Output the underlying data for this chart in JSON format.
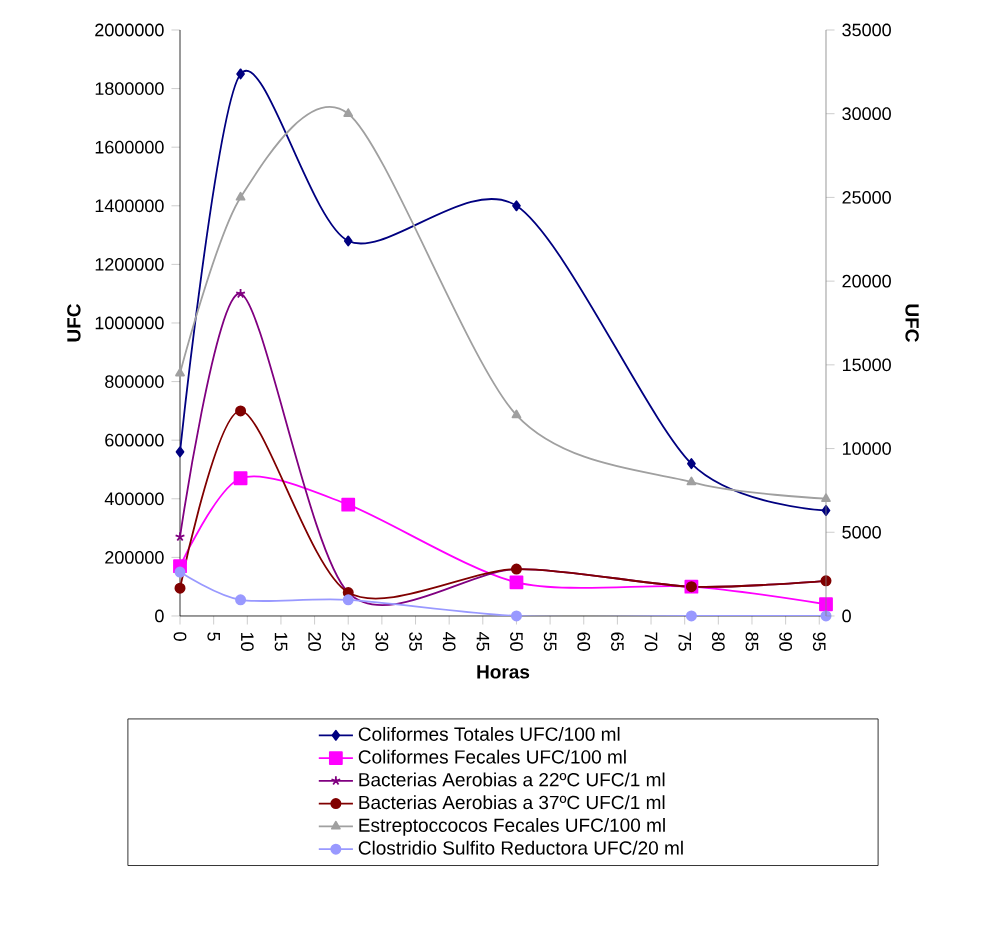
{
  "chart_data": {
    "type": "line",
    "xlabel": "Horas",
    "ylabel": "UFC",
    "y2label": "UFC",
    "xlim": [
      0,
      96
    ],
    "xticks": [
      0,
      5,
      10,
      15,
      20,
      25,
      30,
      35,
      40,
      45,
      50,
      55,
      60,
      65,
      70,
      75,
      80,
      85,
      90,
      95
    ],
    "ylim": [
      0,
      2000000
    ],
    "yticks": [
      0,
      200000,
      400000,
      600000,
      800000,
      1000000,
      1200000,
      1400000,
      1600000,
      1800000,
      2000000
    ],
    "y2lim": [
      0,
      35000
    ],
    "y2ticks": [
      0,
      5000,
      10000,
      15000,
      20000,
      25000,
      30000,
      35000
    ],
    "x": [
      0,
      9,
      25,
      50,
      76,
      96
    ],
    "legend": "bottom",
    "grid": false,
    "series": [
      {
        "name": "Coliformes Totales  UFC/100 ml",
        "color": "#000080",
        "marker": "diamond",
        "values": [
          560000,
          1850000,
          1280000,
          1400000,
          520000,
          360000
        ]
      },
      {
        "name": "Coliformes Fecales UFC/100 ml",
        "color": "#ff00ff",
        "marker": "square",
        "values": [
          170000,
          470000,
          380000,
          115000,
          100000,
          40000
        ]
      },
      {
        "name": "Bacterias Aerobias a 22ºC UFC/1 ml",
        "color": "#800080",
        "marker": "cross",
        "values": [
          270000,
          1100000,
          80000,
          160000,
          100000,
          120000
        ]
      },
      {
        "name": "Bacterias Aerobias a 37ºC UFC/1 ml",
        "color": "#800000",
        "marker": "circle",
        "values": [
          95000,
          700000,
          80000,
          160000,
          100000,
          120000
        ]
      },
      {
        "name": "Estreptoccocos Fecales UFC/100 ml",
        "color": "#a0a0a0",
        "marker": "triangle",
        "axis": "y2",
        "values": [
          14500,
          25000,
          30000,
          12000,
          8000,
          7000
        ]
      },
      {
        "name": "Clostridio Sulfito Reductora UFC/20 ml",
        "color": "#9999ff",
        "marker": "circle",
        "values": [
          150000,
          55000,
          55000,
          0,
          0,
          0
        ]
      }
    ]
  }
}
